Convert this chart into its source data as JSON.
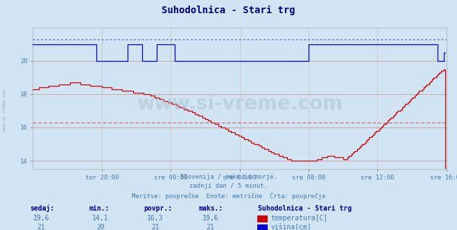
{
  "title": "Suhodolnica - Stari trg",
  "title_color": "#000080",
  "bg_color": "#d0e4f4",
  "plot_bg_color": "#d0e4f4",
  "grid_color_h": "#cc8888",
  "grid_color_v": "#ccbbbb",
  "xlabel_ticks": [
    "tor 20:00",
    "sre 00:00",
    "sre 04:00",
    "sre 08:00",
    "sre 12:00",
    "sre 16:00"
  ],
  "yticks": [
    14,
    16,
    18,
    20
  ],
  "temp_color": "#cc0000",
  "height_color": "#0000cc",
  "avg_temp_color": "#dd4444",
  "avg_height_color": "#4444dd",
  "footer_lines": [
    "Slovenija / reke in morje.",
    "zadnji dan / 5 minut.",
    "Meritve: povprečne  Enote: metrične  Črta: povprečje"
  ],
  "footer_color": "#4477aa",
  "legend_title": "Suhodolnica - Stari trg",
  "legend_title_color": "#000080",
  "legend_color": "#4477aa",
  "stats_headers": [
    "sedaj:",
    "min.:",
    "povpr.:",
    "maks.:"
  ],
  "stats_temp": [
    "19,6",
    "14,1",
    "16,3",
    "19,6"
  ],
  "stats_height": [
    "21",
    "20",
    "21",
    "21"
  ],
  "watermark": "www.si-vreme.com",
  "left_label": "www.si-vreme.com",
  "ylim": [
    13.5,
    22.0
  ],
  "xlim": [
    0,
    288
  ],
  "n_points": 288,
  "avg_temp_val": 16.3,
  "avg_height_val": 21.3
}
